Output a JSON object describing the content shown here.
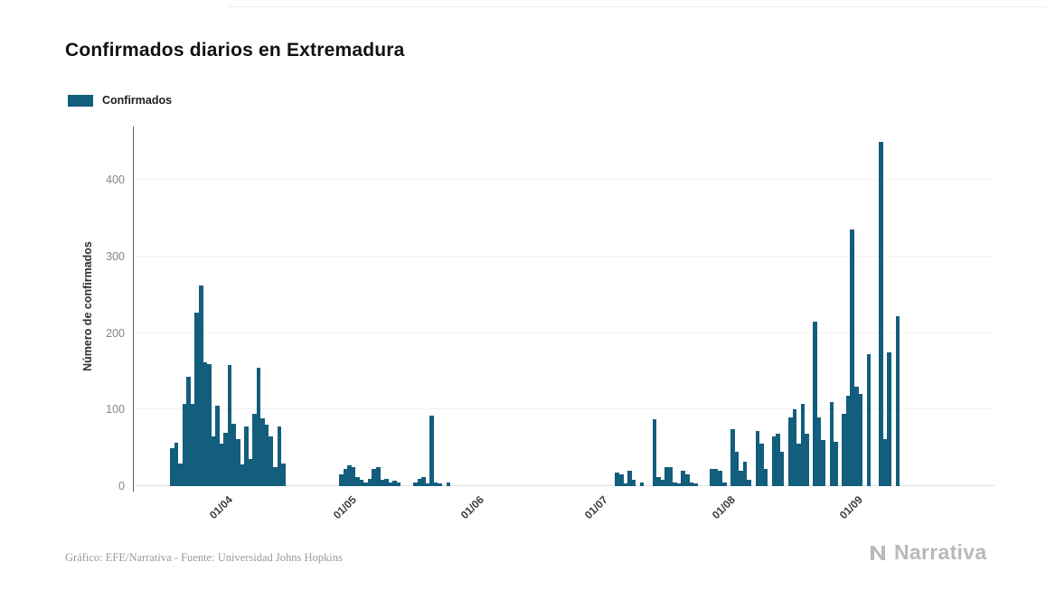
{
  "page": {
    "title": "Confirmados diarios en Extremadura",
    "footer_source": "Gráfico: EFE/Narrativa - Fuente: Universidad Johns Hopkins",
    "brand": "Narrativa"
  },
  "legend": {
    "label": "Confirmados",
    "color": "#135d7d"
  },
  "colors": {
    "bar": "#135d7d",
    "gridline": "#f1f1f1",
    "baseline": "#e2e2e2",
    "axis": "#5f5f5f"
  },
  "chart_data": {
    "type": "bar",
    "title": "Confirmados diarios en Extremadura",
    "xlabel": "",
    "ylabel": "Número de confirmados",
    "legend": [
      "Confirmados"
    ],
    "legend_position": "top-left",
    "grid": true,
    "bar_color": "#135d7d",
    "ylim": [
      0,
      470
    ],
    "yticks": [
      0,
      100,
      200,
      300,
      400
    ],
    "x_domain": {
      "start": "2020-03-09",
      "days": 209
    },
    "xticks": [
      {
        "date": "2020-04-01",
        "label": "01/04"
      },
      {
        "date": "2020-05-01",
        "label": "01/05"
      },
      {
        "date": "2020-06-01",
        "label": "01/06"
      },
      {
        "date": "2020-07-01",
        "label": "01/07"
      },
      {
        "date": "2020-08-01",
        "label": "01/08"
      },
      {
        "date": "2020-09-01",
        "label": "01/09"
      }
    ],
    "series": {
      "name": "Confirmados",
      "start_date": "2020-03-18",
      "values": [
        50,
        57,
        30,
        108,
        143,
        107,
        227,
        262,
        162,
        160,
        65,
        105,
        55,
        70,
        158,
        82,
        62,
        28,
        78,
        35,
        95,
        155,
        88,
        80,
        65,
        25,
        78,
        30,
        0,
        0,
        0,
        0,
        0,
        0,
        0,
        0,
        0,
        0,
        0,
        0,
        0,
        15,
        22,
        27,
        25,
        12,
        8,
        5,
        10,
        22,
        25,
        8,
        10,
        5,
        7,
        5,
        0,
        0,
        0,
        5,
        10,
        12,
        3,
        92,
        5,
        3,
        0,
        5,
        0,
        0,
        0,
        0,
        0,
        0,
        0,
        0,
        0,
        0,
        0,
        0,
        0,
        0,
        0,
        0,
        0,
        0,
        0,
        0,
        0,
        0,
        0,
        0,
        0,
        0,
        0,
        0,
        0,
        0,
        0,
        0,
        0,
        0,
        0,
        0,
        0,
        0,
        0,
        0,
        18,
        15,
        3,
        20,
        8,
        0,
        5,
        0,
        0,
        87,
        12,
        8,
        25,
        25,
        5,
        3,
        20,
        15,
        5,
        3,
        0,
        0,
        0,
        22,
        23,
        20,
        5,
        0,
        75,
        45,
        20,
        32,
        8,
        0,
        72,
        55,
        22,
        0,
        65,
        68,
        45,
        0,
        90,
        100,
        55,
        108,
        68,
        0,
        215,
        90,
        60,
        0,
        110,
        58,
        0,
        95,
        118,
        335,
        130,
        120,
        0,
        172,
        0,
        0,
        450,
        62,
        175,
        0,
        222,
        0,
        0
      ]
    }
  }
}
